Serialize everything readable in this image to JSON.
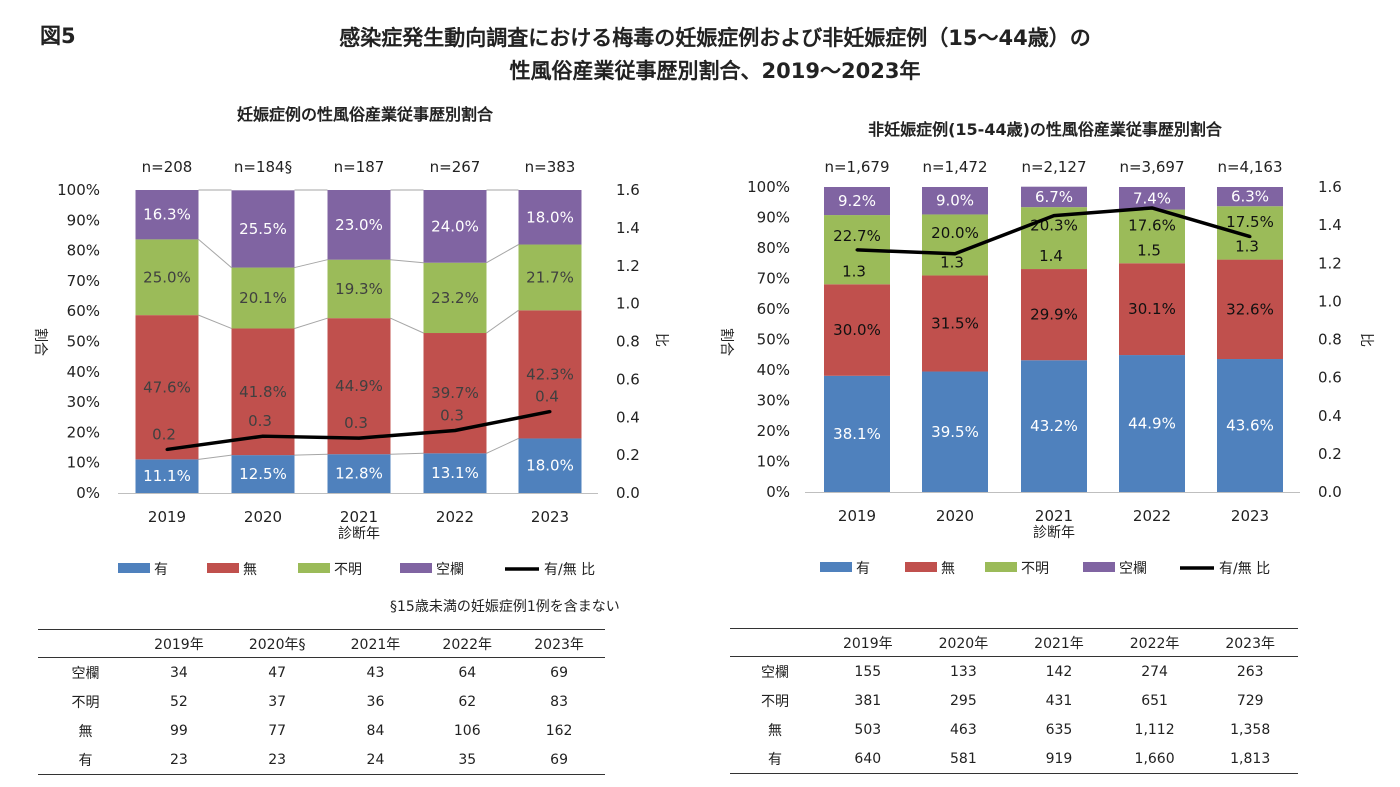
{
  "figure_label": "図5",
  "title_line1": "感染症発生動向調査における梅毒の妊娠症例および非妊娠症例（15～44歳）の",
  "title_line2": "性風俗産業従事歴別割合、2019～2023年",
  "footnote": "§15歳未満の妊娠症例1例を含まない",
  "colors": {
    "有": "#4f81bd",
    "無": "#c0504d",
    "不明": "#9bbb59",
    "空欄": "#8064a2",
    "ratio": "#000000"
  },
  "chart_data": [
    {
      "type": "bar",
      "stacked": true,
      "title": "妊娠症例の性風俗産業従事歴別割合",
      "xlabel": "診断年",
      "ylabel": "割合",
      "y2label": "比",
      "categories": [
        "2019",
        "2020",
        "2021",
        "2022",
        "2023"
      ],
      "n_labels": [
        "n=208",
        "n=184§",
        "n=187",
        "n=267",
        "n=383"
      ],
      "yticks": [
        "0%",
        "10%",
        "20%",
        "30%",
        "40%",
        "50%",
        "60%",
        "70%",
        "80%",
        "90%",
        "100%"
      ],
      "y2ticks": [
        "0.0",
        "0.2",
        "0.4",
        "0.6",
        "0.8",
        "1.0",
        "1.2",
        "1.4",
        "1.6"
      ],
      "ylim": [
        0,
        100
      ],
      "y2lim": [
        0,
        1.6
      ],
      "series_lines": true,
      "series": [
        {
          "name": "有",
          "values": [
            11.1,
            12.5,
            12.8,
            13.1,
            18.0
          ],
          "labels": [
            "11.1%",
            "12.5%",
            "12.8%",
            "13.1%",
            "18.0%"
          ]
        },
        {
          "name": "無",
          "values": [
            47.6,
            41.8,
            44.9,
            39.7,
            42.3
          ],
          "labels": [
            "47.6%",
            "41.8%",
            "44.9%",
            "39.7%",
            "42.3%"
          ]
        },
        {
          "name": "不明",
          "values": [
            25.0,
            20.1,
            19.3,
            23.2,
            21.7
          ],
          "labels": [
            "25.0%",
            "20.1%",
            "19.3%",
            "23.2%",
            "21.7%"
          ]
        },
        {
          "name": "空欄",
          "values": [
            16.3,
            25.5,
            23.0,
            24.0,
            18.0
          ],
          "labels": [
            "16.3%",
            "25.5%",
            "23.0%",
            "24.0%",
            "18.0%"
          ]
        }
      ],
      "ratio": {
        "name": "有/無 比",
        "values": [
          0.23,
          0.3,
          0.29,
          0.33,
          0.43
        ],
        "labels": [
          "0.2",
          "0.3",
          "0.3",
          "0.3",
          "0.4"
        ]
      },
      "legend": [
        "有",
        "無",
        "不明",
        "空欄",
        "有/無 比"
      ],
      "legend_position": "bottom"
    },
    {
      "type": "bar",
      "stacked": true,
      "title": "非妊娠症例(15-44歳)の性風俗産業従事歴別割合",
      "xlabel": "診断年",
      "ylabel": "割合",
      "y2label": "比",
      "categories": [
        "2019",
        "2020",
        "2021",
        "2022",
        "2023"
      ],
      "n_labels": [
        "n=1,679",
        "n=1,472",
        "n=2,127",
        "n=3,697",
        "n=4,163"
      ],
      "yticks": [
        "0%",
        "10%",
        "20%",
        "30%",
        "40%",
        "50%",
        "60%",
        "70%",
        "80%",
        "90%",
        "100%"
      ],
      "y2ticks": [
        "0.0",
        "0.2",
        "0.4",
        "0.6",
        "0.8",
        "1.0",
        "1.2",
        "1.4",
        "1.6"
      ],
      "ylim": [
        0,
        100
      ],
      "y2lim": [
        0,
        1.6
      ],
      "series_lines": false,
      "series": [
        {
          "name": "有",
          "values": [
            38.1,
            39.5,
            43.2,
            44.9,
            43.6
          ],
          "labels": [
            "38.1%",
            "39.5%",
            "43.2%",
            "44.9%",
            "43.6%"
          ]
        },
        {
          "name": "無",
          "values": [
            30.0,
            31.5,
            29.9,
            30.1,
            32.6
          ],
          "labels": [
            "30.0%",
            "31.5%",
            "29.9%",
            "30.1%",
            "32.6%"
          ]
        },
        {
          "name": "不明",
          "values": [
            22.7,
            20.0,
            20.3,
            17.6,
            17.5
          ],
          "labels": [
            "22.7%",
            "20.0%",
            "20.3%",
            "17.6%",
            "17.5%"
          ]
        },
        {
          "name": "空欄",
          "values": [
            9.2,
            9.0,
            6.7,
            7.4,
            6.3
          ],
          "labels": [
            "9.2%",
            "9.0%",
            "6.7%",
            "7.4%",
            "6.3%"
          ]
        }
      ],
      "ratio": {
        "name": "有/無 比",
        "values": [
          1.27,
          1.25,
          1.45,
          1.49,
          1.34
        ],
        "labels": [
          "1.3",
          "1.3",
          "1.4",
          "1.5",
          "1.3"
        ]
      },
      "legend": [
        "有",
        "無",
        "不明",
        "空欄",
        "有/無 比"
      ],
      "legend_position": "bottom"
    }
  ],
  "tables": [
    {
      "headers": [
        "",
        "2019年",
        "2020年§",
        "2021年",
        "2022年",
        "2023年"
      ],
      "rows": [
        [
          "空欄",
          "34",
          "47",
          "43",
          "64",
          "69"
        ],
        [
          "不明",
          "52",
          "37",
          "36",
          "62",
          "83"
        ],
        [
          "無",
          "99",
          "77",
          "84",
          "106",
          "162"
        ],
        [
          "有",
          "23",
          "23",
          "24",
          "35",
          "69"
        ]
      ]
    },
    {
      "headers": [
        "",
        "2019年",
        "2020年",
        "2021年",
        "2022年",
        "2023年"
      ],
      "rows": [
        [
          "空欄",
          "155",
          "133",
          "142",
          "274",
          "263"
        ],
        [
          "不明",
          "381",
          "295",
          "431",
          "651",
          "729"
        ],
        [
          "無",
          "503",
          "463",
          "635",
          "1,112",
          "1,358"
        ],
        [
          "有",
          "640",
          "581",
          "919",
          "1,660",
          "1,813"
        ]
      ]
    }
  ]
}
